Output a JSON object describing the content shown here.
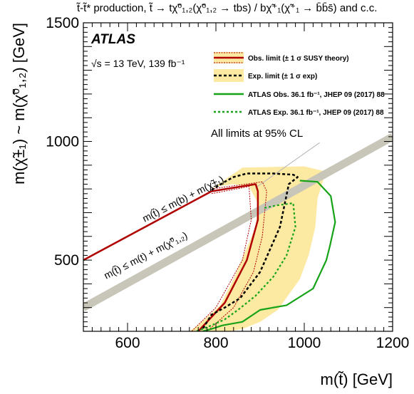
{
  "chart_data": {
    "type": "line",
    "title": "t̃-t̃* production, t̃ → tχ̃⁰₁,₂(χ̃⁰₁,₂ → tbs) / bχ̃⁺₁(χ̃⁺₁ → b̄b̄s̄) and c.c.",
    "xlabel": "m(t̃) [GeV]",
    "ylabel": "m(χ̃±₁) ~ m(χ̃⁰₁,₂) [GeV]",
    "xlim": [
      500,
      1200
    ],
    "ylim": [
      200,
      1500
    ],
    "xticks": [
      600,
      800,
      1000,
      1200
    ],
    "yticks": [
      500,
      1000,
      1500
    ],
    "xtick_labels": [
      "600",
      "800",
      "1000",
      "1200"
    ],
    "ytick_labels": [
      "500",
      "1000",
      "1500"
    ],
    "atlas_label": "ATLAS",
    "energy_label": "√s = 13 TeV, 139 fb⁻¹",
    "cl_annotation": "All limits at 95% CL",
    "diag_upper_label": "m(t̃) ≤ m(b) + m(χ̃±₁)",
    "diag_lower_label": "m(t̃) ≤ m(t) + m(χ̃⁰₁,₂)",
    "legend_position": "top-right",
    "legend": [
      {
        "label": "Obs. limit (± 1 σ SUSY theory)",
        "color": "#b00000",
        "style": "solid"
      },
      {
        "label": "Exp. limit (± 1 σ exp)",
        "color": "#000000",
        "style": "dashed",
        "band": "#fce9a2"
      },
      {
        "label": "ATLAS Obs. 36.1 fb⁻¹, JHEP 09 (2017) 88",
        "color": "#17a317",
        "style": "solid"
      },
      {
        "label": "ATLAS Exp. 36.1 fb⁻¹, JHEP 09 (2017) 88",
        "color": "#17a317",
        "style": "dotted"
      }
    ],
    "series": [
      {
        "name": "Obs. limit",
        "color": "#b00000",
        "x": [
          500,
          790,
          890,
          895,
          895,
          870,
          820,
          760
        ],
        "y": [
          500,
          790,
          820,
          790,
          670,
          500,
          320,
          200
        ]
      },
      {
        "name": "Obs. limit +1σ",
        "color": "#b00000",
        "x": [
          790,
          905,
          915,
          905,
          885,
          840,
          780
        ],
        "y": [
          800,
          830,
          790,
          600,
          450,
          300,
          200
        ]
      },
      {
        "name": "Obs. limit -1σ",
        "color": "#b00000",
        "x": [
          790,
          875,
          880,
          860,
          800,
          745
        ],
        "y": [
          780,
          810,
          670,
          500,
          300,
          200
        ]
      },
      {
        "name": "Exp. limit",
        "color": "#000000",
        "x": [
          790,
          820,
          840,
          870,
          930,
          975,
          985,
          965,
          945,
          900,
          855,
          820,
          790,
          770
        ],
        "y": [
          795,
          830,
          850,
          865,
          865,
          860,
          850,
          820,
          640,
          450,
          340,
          300,
          270,
          210
        ]
      },
      {
        "name": "Exp. band upper",
        "color": "#fce9a2",
        "x": [
          790,
          860,
          1000,
          1055,
          1045,
          1030,
          1025,
          1010,
          990,
          940,
          900,
          860,
          830,
          800,
          780
        ],
        "y": [
          800,
          890,
          895,
          870,
          850,
          760,
          640,
          520,
          420,
          290,
          240,
          210,
          200,
          200,
          200
        ]
      },
      {
        "name": "Exp. band lower",
        "color": "#fce9a2",
        "x": [
          790,
          800,
          840,
          875,
          895,
          890,
          865,
          840,
          810,
          780,
          755,
          740
        ],
        "y": [
          795,
          810,
          820,
          810,
          740,
          640,
          530,
          420,
          310,
          260,
          220,
          200
        ]
      },
      {
        "name": "ATLAS Obs. 36.1",
        "color": "#17a317",
        "x": [
          990,
          1030,
          1060,
          1070,
          1058,
          1050,
          1020,
          960,
          900,
          860,
          815,
          790,
          770
        ],
        "y": [
          835,
          830,
          770,
          660,
          560,
          500,
          380,
          310,
          290,
          240,
          225,
          210,
          200
        ]
      },
      {
        "name": "ATLAS Exp. 36.1",
        "color": "#17a317",
        "x": [
          910,
          935,
          955,
          975,
          980,
          960,
          930,
          890,
          850,
          820,
          790,
          770,
          755
        ],
        "y": [
          720,
          730,
          735,
          740,
          640,
          520,
          430,
          350,
          290,
          250,
          225,
          210,
          200
        ]
      }
    ],
    "kinematic_band": {
      "x": [
        500,
        1200
      ],
      "y": [
        300,
        1020
      ],
      "color": "#c8c6b8"
    },
    "cl_line": {
      "x": [
        890,
        1035
      ],
      "y": [
        805,
        995
      ],
      "color": "#b4b4b4"
    }
  }
}
